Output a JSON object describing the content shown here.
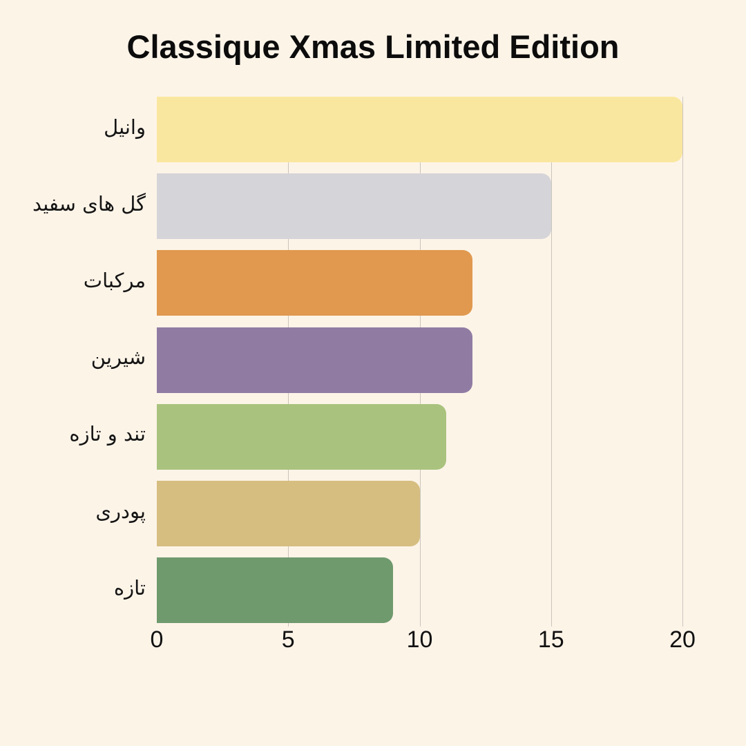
{
  "page": {
    "background_color": "#FDF4E8"
  },
  "header": {
    "title": "Classique Xmas Limited Edition"
  },
  "chart_data": {
    "type": "bar",
    "orientation": "horizontal",
    "title": "Classique Xmas Limited Edition",
    "categories": [
      "وانیل",
      "گل های سفید",
      "مرکبات",
      "شیرین",
      "تند و تازه",
      "پودری",
      "تازه"
    ],
    "values": [
      20,
      15,
      12,
      12,
      11,
      10,
      9
    ],
    "bar_colors": [
      "#FAE79F",
      "#D5D4D8",
      "#E0994F",
      "#907CA3",
      "#A9C37E",
      "#D6BE81",
      "#6F9A6E"
    ],
    "xlabel": "",
    "ylabel": "",
    "xlim": [
      0,
      20
    ],
    "x_ticks": [
      0,
      5,
      10,
      15,
      20
    ],
    "grid": true,
    "gridline_color": "#c9c4bc",
    "legend": "none",
    "text_color": "#111111"
  }
}
